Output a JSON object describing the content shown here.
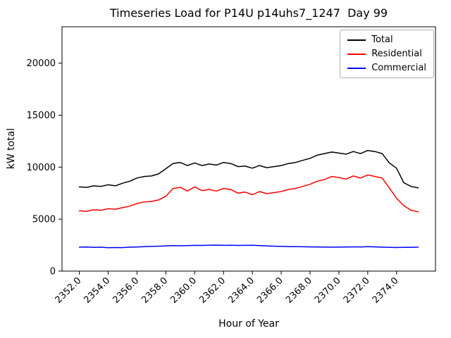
{
  "chart_data": {
    "type": "line",
    "title": "Timeseries Load for P14U p14uhs7_1247  Day 99",
    "xlabel": "Hour of Year",
    "ylabel": "kW total",
    "xlim": [
      2350.8,
      2376.7
    ],
    "ylim": [
      0,
      23500
    ],
    "grid": false,
    "legend_position": "upper right",
    "xticks": [
      2352,
      2354,
      2356,
      2358,
      2360,
      2362,
      2364,
      2366,
      2368,
      2370,
      2372,
      2374
    ],
    "xtick_labels": [
      "2352.0",
      "2354.0",
      "2356.0",
      "2358.0",
      "2360.0",
      "2362.0",
      "2364.0",
      "2366.0",
      "2368.0",
      "2370.0",
      "2372.0",
      "2374.0"
    ],
    "yticks": [
      0,
      5000,
      10000,
      15000,
      20000
    ],
    "ytick_labels": [
      "0",
      "5000",
      "10000",
      "15000",
      "20000"
    ],
    "x": [
      2352.0,
      2352.5,
      2353.0,
      2353.5,
      2354.0,
      2354.5,
      2355.0,
      2355.5,
      2356.0,
      2356.5,
      2357.0,
      2357.5,
      2358.0,
      2358.5,
      2359.0,
      2359.5,
      2360.0,
      2360.5,
      2361.0,
      2361.5,
      2362.0,
      2362.5,
      2363.0,
      2363.5,
      2364.0,
      2364.5,
      2365.0,
      2365.5,
      2366.0,
      2366.5,
      2367.0,
      2367.5,
      2368.0,
      2368.5,
      2369.0,
      2369.5,
      2370.0,
      2370.5,
      2371.0,
      2371.5,
      2372.0,
      2372.5,
      2373.0,
      2373.5,
      2374.0,
      2374.5,
      2375.0,
      2375.5
    ],
    "series": [
      {
        "name": "Total",
        "color": "#000000",
        "values": [
          8100,
          8050,
          8200,
          8150,
          8300,
          8200,
          8450,
          8650,
          8950,
          9100,
          9150,
          9350,
          9850,
          10350,
          10450,
          10150,
          10400,
          10150,
          10300,
          10200,
          10450,
          10350,
          10050,
          10100,
          9900,
          10150,
          9950,
          10050,
          10150,
          10350,
          10450,
          10650,
          10850,
          11150,
          11300,
          11450,
          11350,
          11250,
          11500,
          11300,
          11600,
          11500,
          11300,
          10400,
          9900,
          8500,
          8150,
          8000
        ]
      },
      {
        "name": "Residential",
        "color": "#ff0000",
        "values": [
          5800,
          5750,
          5900,
          5850,
          6000,
          5950,
          6100,
          6250,
          6500,
          6650,
          6700,
          6850,
          7200,
          7950,
          8050,
          7700,
          8100,
          7750,
          7850,
          7700,
          7950,
          7850,
          7500,
          7600,
          7350,
          7650,
          7450,
          7550,
          7650,
          7850,
          7950,
          8150,
          8350,
          8650,
          8800,
          9100,
          9000,
          8850,
          9150,
          8950,
          9250,
          9100,
          8950,
          8000,
          7000,
          6300,
          5850,
          5700
        ]
      },
      {
        "name": "Commercial",
        "color": "#0000ff",
        "values": [
          2300,
          2320,
          2280,
          2300,
          2250,
          2270,
          2260,
          2300,
          2320,
          2350,
          2380,
          2400,
          2420,
          2450,
          2440,
          2460,
          2480,
          2470,
          2490,
          2500,
          2480,
          2490,
          2470,
          2480,
          2490,
          2450,
          2420,
          2400,
          2380,
          2360,
          2350,
          2340,
          2330,
          2320,
          2310,
          2300,
          2310,
          2320,
          2330,
          2320,
          2350,
          2330,
          2300,
          2280,
          2270,
          2280,
          2290,
          2300
        ]
      }
    ]
  }
}
